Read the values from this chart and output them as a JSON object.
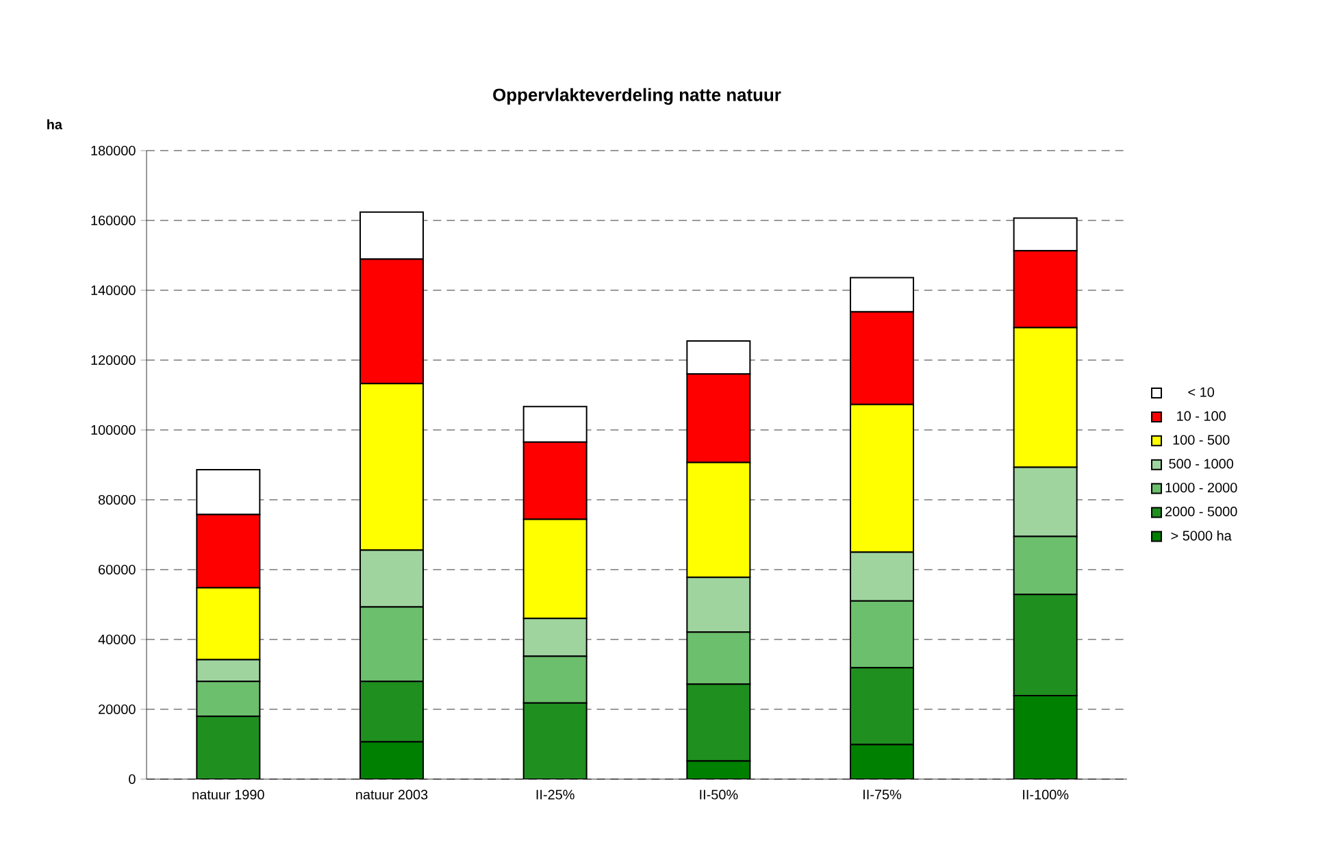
{
  "chart_data": {
    "type": "bar",
    "title": "Oppervlakteverdeling natte natuur",
    "ylabel": "ha",
    "categories": [
      "natuur 1990",
      "natuur 2003",
      "II-25%",
      "II-50%",
      "II-75%",
      "II-100%"
    ],
    "stacked": true,
    "series": [
      {
        "name": "> 5000 ha",
        "color": "#008000",
        "values": [
          0,
          10700,
          0,
          5200,
          9900,
          23900
        ]
      },
      {
        "name": "2000 - 5000",
        "color": "#1f8f1f",
        "values": [
          18000,
          17300,
          21800,
          22000,
          22000,
          29000
        ]
      },
      {
        "name": "1000 - 2000",
        "color": "#6cbf6c",
        "values": [
          10000,
          21300,
          13400,
          14900,
          19100,
          16600
        ]
      },
      {
        "name": "500 - 1000",
        "color": "#9fd49f",
        "values": [
          6200,
          16300,
          10800,
          15700,
          14000,
          19800
        ]
      },
      {
        "name": "100 - 500",
        "color": "#ffff00",
        "values": [
          20600,
          47700,
          28400,
          32900,
          42300,
          40000
        ]
      },
      {
        "name": "10 - 100",
        "color": "#ff0000",
        "values": [
          21000,
          35600,
          22100,
          25300,
          26500,
          22000
        ]
      },
      {
        "name": "< 10",
        "color": "#ffffff",
        "values": [
          12800,
          13500,
          10200,
          9500,
          9800,
          9400
        ]
      }
    ],
    "ylim": [
      0,
      180000
    ],
    "yticks": [
      0,
      20000,
      40000,
      60000,
      80000,
      100000,
      120000,
      140000,
      160000,
      180000
    ],
    "grid": "y",
    "legend": "right"
  }
}
